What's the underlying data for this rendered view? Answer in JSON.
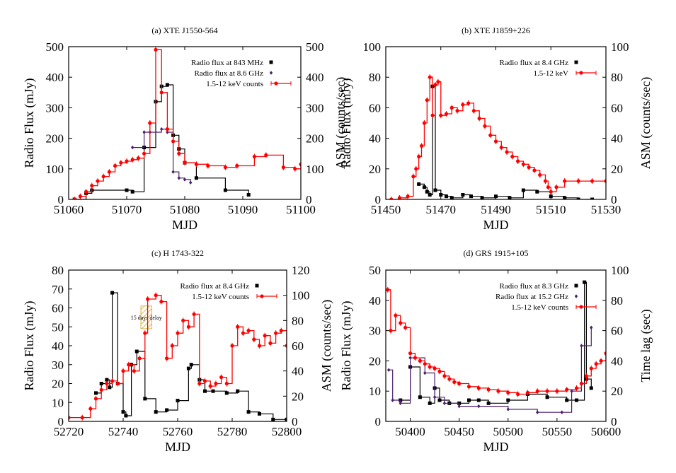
{
  "chart_data": [
    {
      "type": "line",
      "title": "(a) XTE J1550-564",
      "xlabel": "MJD",
      "ylabel": "Radio Flux (mJy)",
      "y2label": "ASM (counts/sec)",
      "xlim": [
        51060,
        51100
      ],
      "ylim": [
        0,
        500
      ],
      "y2lim": [
        0,
        500
      ],
      "xticks": [
        51060,
        51070,
        51080,
        51090,
        51100
      ],
      "yticks": [
        0,
        100,
        200,
        300,
        400,
        500
      ],
      "y2ticks": [
        0,
        100,
        200,
        300,
        400,
        500
      ],
      "legend": "top-right",
      "series": [
        {
          "name": "Radio flux at 843 MHz",
          "color": "#000000",
          "marker": "square",
          "axis": "left",
          "x": [
            51061,
            51063,
            51064,
            51070,
            51071,
            51073,
            51075,
            51076,
            51077,
            51078,
            51079,
            51080,
            51082,
            51087,
            51091
          ],
          "y": [
            0,
            20,
            30,
            30,
            25,
            170,
            320,
            370,
            375,
            210,
            165,
            120,
            70,
            30,
            15
          ]
        },
        {
          "name": "Radio flux at 8.6 GHz",
          "color": "#4b1d6e",
          "marker": "diamond",
          "axis": "left",
          "x": [
            51071,
            51073,
            51074,
            51076,
            51077,
            51078,
            51079,
            51080,
            51081
          ],
          "y": [
            170,
            220,
            220,
            230,
            220,
            90,
            70,
            65,
            55
          ]
        },
        {
          "name": "1.5-12 keV counts",
          "color": "#ff0000",
          "marker": "circle",
          "axis": "right",
          "x": [
            51061,
            51062,
            51063,
            51064,
            51065,
            51066,
            51067,
            51068,
            51069,
            51070,
            51071,
            51072,
            51073,
            51074,
            51075,
            51076,
            51077,
            51078,
            51079,
            51080,
            51082,
            51084,
            51087,
            51089,
            51092,
            51094,
            51097,
            51099,
            51100
          ],
          "y": [
            0,
            10,
            25,
            45,
            60,
            75,
            90,
            110,
            120,
            125,
            130,
            135,
            150,
            250,
            490,
            350,
            230,
            190,
            150,
            120,
            115,
            110,
            105,
            110,
            140,
            145,
            105,
            100,
            115
          ]
        }
      ]
    },
    {
      "type": "line",
      "title": "(b) XTE J1859+226",
      "xlabel": "MJD",
      "ylabel": "Radio Flux (mJy)",
      "y2label": "ASM (counts/sec)",
      "xlim": [
        51450,
        51530
      ],
      "ylim": [
        0,
        100
      ],
      "y2lim": [
        0,
        100
      ],
      "xticks": [
        51450,
        51470,
        51490,
        51510,
        51530
      ],
      "yticks": [
        0,
        20,
        40,
        60,
        80,
        100
      ],
      "y2ticks": [
        0,
        20,
        40,
        60,
        80,
        100
      ],
      "legend": "top-right",
      "series": [
        {
          "name": "Radio flux at 8.4 GHz",
          "color": "#000000",
          "marker": "square",
          "axis": "left",
          "x": [
            51462,
            51464,
            51465,
            51466,
            51467,
            51468,
            51470,
            51472,
            51474,
            51478,
            51481,
            51485,
            51490,
            51495,
            51500,
            51505,
            51510,
            51515,
            51520,
            51525
          ],
          "y": [
            10,
            8,
            5,
            3,
            74,
            6,
            3,
            2,
            1,
            3,
            2,
            1,
            2,
            1,
            6,
            5,
            2,
            1,
            0,
            0
          ]
        },
        {
          "name": "1.5-12 keV",
          "color": "#ff0000",
          "marker": "circle",
          "axis": "right",
          "x": [
            51452,
            51455,
            51458,
            51460,
            51461,
            51462,
            51463,
            51464,
            51465,
            51466,
            51467,
            51468,
            51469,
            51470,
            51472,
            51474,
            51476,
            51478,
            51480,
            51482,
            51484,
            51486,
            51488,
            51490,
            51492,
            51494,
            51496,
            51498,
            51500,
            51502,
            51504,
            51506,
            51508,
            51509,
            51510,
            51512,
            51515,
            51520,
            51525,
            51530
          ],
          "y": [
            0,
            1,
            2,
            15,
            20,
            28,
            35,
            50,
            65,
            80,
            55,
            75,
            77,
            55,
            56,
            60,
            58,
            62,
            63,
            58,
            53,
            48,
            42,
            38,
            34,
            31,
            28,
            25,
            23,
            21,
            19,
            16,
            12,
            8,
            5,
            8,
            12,
            12,
            12,
            12
          ]
        }
      ]
    },
    {
      "type": "line",
      "title": "(c) H 1743-322",
      "xlabel": "MJD",
      "ylabel": "Radio Flux (mJy)",
      "y2label": "ASM (counts/sec)",
      "xlim": [
        52720,
        52800
      ],
      "ylim": [
        0,
        80
      ],
      "y2lim": [
        0,
        120
      ],
      "xticks": [
        52720,
        52740,
        52760,
        52780,
        52800
      ],
      "yticks": [
        0,
        10,
        20,
        30,
        40,
        50,
        60,
        70,
        80
      ],
      "y2ticks": [
        0,
        20,
        40,
        60,
        80,
        100,
        120
      ],
      "legend": "top-right",
      "annotation": "15 days delay",
      "series": [
        {
          "name": "Radio flux at 8.4 GHz",
          "color": "#000000",
          "marker": "square",
          "axis": "left",
          "x": [
            52730,
            52732,
            52734,
            52735,
            52736,
            52738,
            52740,
            52741,
            52743,
            52745,
            52748,
            52752,
            52756,
            52760,
            52764,
            52765,
            52768,
            52770,
            52773,
            52778,
            52782,
            52786,
            52790,
            52795,
            52800
          ],
          "y": [
            15,
            20,
            22,
            18,
            68,
            20,
            5,
            3,
            30,
            37,
            12,
            5,
            6,
            11,
            28,
            30,
            22,
            16,
            16,
            15,
            16,
            5,
            4,
            1,
            1
          ]
        },
        {
          "name": "1.5-12 keV counts",
          "color": "#ff0000",
          "marker": "circle",
          "axis": "right",
          "x": [
            52720,
            52725,
            52728,
            52730,
            52732,
            52734,
            52736,
            52738,
            52740,
            52742,
            52744,
            52746,
            52748,
            52749,
            52752,
            52754,
            52756,
            52758,
            52760,
            52762,
            52764,
            52766,
            52768,
            52770,
            52772,
            52774,
            52776,
            52778,
            52780,
            52782,
            52784,
            52786,
            52788,
            52790,
            52792,
            52794,
            52796,
            52798,
            52800
          ],
          "y": [
            3,
            3,
            10,
            18,
            25,
            30,
            32,
            30,
            40,
            45,
            40,
            50,
            70,
            97,
            100,
            95,
            50,
            60,
            70,
            80,
            75,
            85,
            30,
            32,
            28,
            30,
            35,
            30,
            60,
            75,
            70,
            72,
            65,
            60,
            68,
            62,
            70,
            72,
            60
          ]
        }
      ]
    },
    {
      "type": "line",
      "title": "(d) GRS 1915+105",
      "xlabel": "MJD",
      "ylabel": "Radio Flux (mJy)",
      "y2label": "Time lag (sec)",
      "xlim": [
        50375,
        50600
      ],
      "ylim": [
        0,
        50
      ],
      "y2lim": [
        0,
        100
      ],
      "xticks": [
        50400,
        50450,
        50500,
        50550,
        50600
      ],
      "yticks": [
        0,
        10,
        20,
        30,
        40,
        50
      ],
      "y2ticks": [
        0,
        20,
        40,
        60,
        80,
        100
      ],
      "legend": "top-right",
      "series": [
        {
          "name": "Radio flux at 8.3 GHz",
          "color": "#000000",
          "marker": "square",
          "axis": "left",
          "x": [
            50390,
            50400,
            50410,
            50420,
            50425,
            50430,
            50440,
            50450,
            50460,
            50470,
            50480,
            50500,
            50520,
            50540,
            50560,
            50570,
            50578,
            50580,
            50585
          ],
          "y": [
            7,
            18,
            8,
            6,
            11,
            7,
            6,
            6,
            7,
            7,
            6,
            7,
            9,
            8,
            7,
            7,
            46,
            14,
            11
          ]
        },
        {
          "name": "Radio flux at 15.2 GHz",
          "color": "#4b1d6e",
          "marker": "diamond",
          "axis": "left",
          "x": [
            50378,
            50382,
            50390,
            50400,
            50415,
            50425,
            50435,
            50450,
            50470,
            50500,
            50530,
            50555,
            50565,
            50575,
            50585
          ],
          "y": [
            17,
            7,
            6,
            21,
            16,
            8,
            6,
            5,
            5,
            4,
            3,
            3,
            10,
            25,
            31
          ]
        },
        {
          "name": "1.5-12 keV counts",
          "color": "#ff0000",
          "marker": "circle",
          "axis": "right",
          "x": [
            50377,
            50380,
            50385,
            50390,
            50395,
            50400,
            50405,
            50410,
            50415,
            50420,
            50425,
            50430,
            50435,
            50440,
            50445,
            50450,
            50460,
            50470,
            50480,
            50490,
            50500,
            50510,
            50520,
            50530,
            50540,
            50550,
            50560,
            50570,
            50575,
            50580,
            50585,
            50590,
            50595,
            50600
          ],
          "y": [
            87,
            60,
            70,
            65,
            62,
            45,
            42,
            40,
            38,
            36,
            35,
            33,
            30,
            28,
            26,
            25,
            23,
            22,
            21,
            20,
            19,
            18,
            19,
            20,
            20,
            20,
            21,
            22,
            25,
            30,
            35,
            38,
            40,
            45
          ]
        }
      ]
    }
  ]
}
